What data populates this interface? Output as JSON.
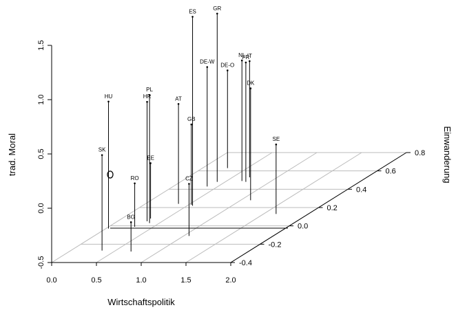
{
  "chart_data": {
    "type": "scatter3d",
    "xlabel": "Wirtschaftspolitik",
    "ylabel": "Einwanderung",
    "zlabel": "trad. Moral",
    "labels": [
      "SK",
      "HU",
      "BG",
      "RO",
      "HR",
      "PL",
      "EE",
      "AT",
      "CZ",
      "ES",
      "GB",
      "DE-W",
      "GR",
      "DE-O",
      "NL",
      "FR",
      "IT",
      "DK",
      "SE"
    ],
    "x": [
      0.35,
      0.03,
      0.69,
      0.29,
      0.33,
      0.39,
      0.32,
      0.37,
      1.06,
      0.56,
      0.53,
      0.38,
      0.41,
      0.28,
      0.67,
      0.73,
      0.69,
      1.11,
      1.64
    ],
    "y": [
      -0.27,
      -0.03,
      -0.28,
      -0.01,
      0.05,
      0.03,
      0.08,
      0.24,
      -0.11,
      0.22,
      0.23,
      0.43,
      0.48,
      0.63,
      0.49,
      0.48,
      0.53,
      0.28,
      0.13
    ],
    "z": [
      0.38,
      0.67,
      -0.23,
      -0.1,
      0.6,
      0.68,
      0.01,
      0.42,
      -0.02,
      1.24,
      0.24,
      0.6,
      1.05,
      0.4,
      0.61,
      0.6,
      0.57,
      0.53,
      0.14
    ],
    "color": "#000000",
    "xlim": [
      0,
      2
    ],
    "ylim": [
      -0.4,
      0.8
    ],
    "zlim": [
      -0.5,
      1.5
    ],
    "xticks": [
      {
        "value": 0,
        "label": "0.0"
      },
      0.5,
      {
        "value": 1,
        "label": "1.0"
      },
      1.5,
      {
        "value": 2,
        "label": "2.0"
      }
    ],
    "yticks": [
      -0.4,
      -0.2,
      {
        "value": 0,
        "label": "0.0"
      },
      0.2,
      0.4,
      0.6,
      0.8
    ],
    "zticks": [
      -0.5,
      {
        "value": 0,
        "label": "0.0"
      },
      0.5,
      {
        "value": 1,
        "label": "1.0"
      },
      1.5
    ],
    "grid": true
  }
}
